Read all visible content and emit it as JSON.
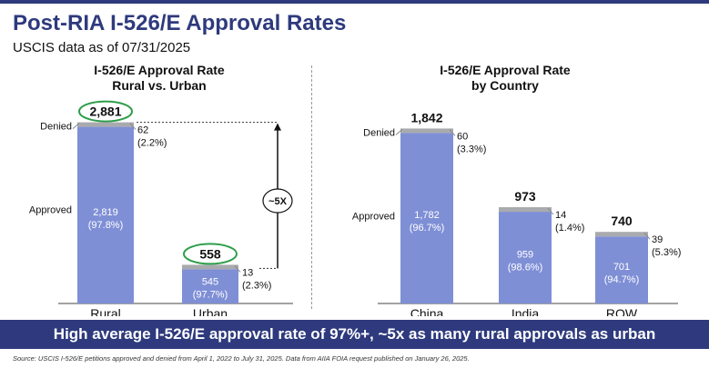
{
  "header": {
    "title": "Post-RIA I-526/E Approval Rates",
    "subtitle": "USCIS data as of 07/31/2025"
  },
  "chart_data": [
    {
      "type": "bar",
      "stacked": true,
      "title": "I-526/E Approval Rate",
      "subtitle": "Rural vs. Urban",
      "categories": [
        "Rural",
        "Urban"
      ],
      "row_labels": {
        "denied": "Denied",
        "approved": "Approved"
      },
      "totals": [
        2881,
        558
      ],
      "total_labels": [
        "2,881",
        "558"
      ],
      "series": [
        {
          "name": "Approved",
          "values": [
            2819,
            545
          ],
          "value_labels": [
            "2,819",
            "545"
          ],
          "pct_labels": [
            "(97.8%)",
            "(97.7%)"
          ]
        },
        {
          "name": "Denied",
          "values": [
            62,
            13
          ],
          "value_labels": [
            "62",
            "13"
          ],
          "pct_labels": [
            "(2.2%)",
            "(2.3%)"
          ]
        }
      ],
      "annotation": "~5X",
      "highlighted_totals": true,
      "colors": {
        "approved": "#7f8fd6",
        "denied": "#a8aaae",
        "highlight": "#2e9e4a"
      }
    },
    {
      "type": "bar",
      "stacked": true,
      "title": "I-526/E Approval Rate",
      "subtitle": "by Country",
      "categories": [
        "China",
        "India",
        "ROW"
      ],
      "row_labels": {
        "denied": "Denied",
        "approved": "Approved"
      },
      "totals": [
        1842,
        973,
        740
      ],
      "total_labels": [
        "1,842",
        "973",
        "740"
      ],
      "series": [
        {
          "name": "Approved",
          "values": [
            1782,
            959,
            701
          ],
          "value_labels": [
            "1,782",
            "959",
            "701"
          ],
          "pct_labels": [
            "(96.7%)",
            "(98.6%)",
            "(94.7%)"
          ]
        },
        {
          "name": "Denied",
          "values": [
            60,
            14,
            39
          ],
          "value_labels": [
            "60",
            "14",
            "39"
          ],
          "pct_labels": [
            "(3.3%)",
            "(1.4%)",
            "(5.3%)"
          ]
        }
      ],
      "colors": {
        "approved": "#7f8fd6",
        "denied": "#a8aaae"
      }
    }
  ],
  "banner": "High average I-526/E approval rate of 97%+, ~5x as many rural approvals as urban",
  "source": "Source: USCIS I-526/E petitions approved and denied from April 1, 2022 to July 31, 2025. Data from AIIA FOIA request published on January 26, 2025."
}
